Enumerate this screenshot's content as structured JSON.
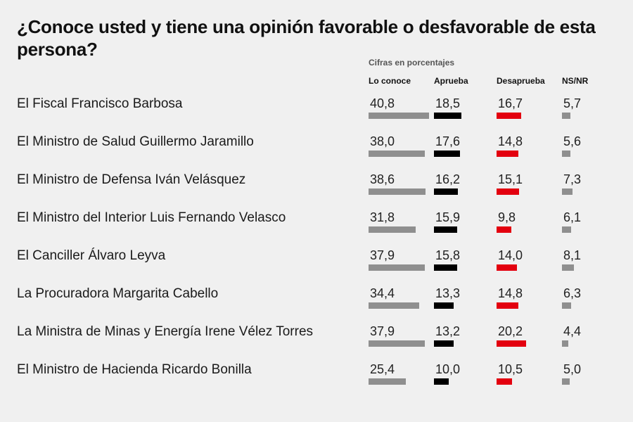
{
  "chart_data": {
    "type": "table",
    "title": "¿Conoce usted y tiene una opinión favorable o desfavorable de esta persona?",
    "note": "Cifras en porcentajes",
    "columns": [
      {
        "key": "conoce",
        "label": "Lo conoce",
        "color": "#8f8f8f"
      },
      {
        "key": "aprueba",
        "label": "Aprueba",
        "color": "#000000"
      },
      {
        "key": "desaprueba",
        "label": "Desaprueba",
        "color": "#e3000f"
      },
      {
        "key": "nsnr",
        "label": "NS/NR",
        "color": "#8f8f8f"
      }
    ],
    "rows": [
      {
        "label": "El Fiscal Francisco Barbosa",
        "values": [
          "40,8",
          "18,5",
          "16,7",
          "5,7"
        ]
      },
      {
        "label": "El Ministro de Salud Guillermo Jaramillo",
        "values": [
          "38,0",
          "17,6",
          "14,8",
          "5,6"
        ]
      },
      {
        "label": "El Ministro de Defensa Iván Velásquez",
        "values": [
          "38,6",
          "16,2",
          "15,1",
          "7,3"
        ]
      },
      {
        "label": "El Ministro del Interior Luis Fernando Velasco",
        "values": [
          "31,8",
          "15,9",
          "9,8",
          "6,1"
        ]
      },
      {
        "label": "El Canciller Álvaro Leyva",
        "values": [
          "37,9",
          "15,8",
          "14,0",
          "8,1"
        ]
      },
      {
        "label": "La Procuradora Margarita Cabello",
        "values": [
          "34,4",
          "13,3",
          "14,8",
          "6,3"
        ]
      },
      {
        "label": "La Ministra de Minas y Energía Irene Vélez Torres",
        "values": [
          "37,9",
          "13,2",
          "20,2",
          "4,4"
        ]
      },
      {
        "label": "El Ministro de Hacienda Ricardo Bonilla",
        "values": [
          "25,4",
          "10,0",
          "10,5",
          "5,0"
        ]
      }
    ]
  }
}
